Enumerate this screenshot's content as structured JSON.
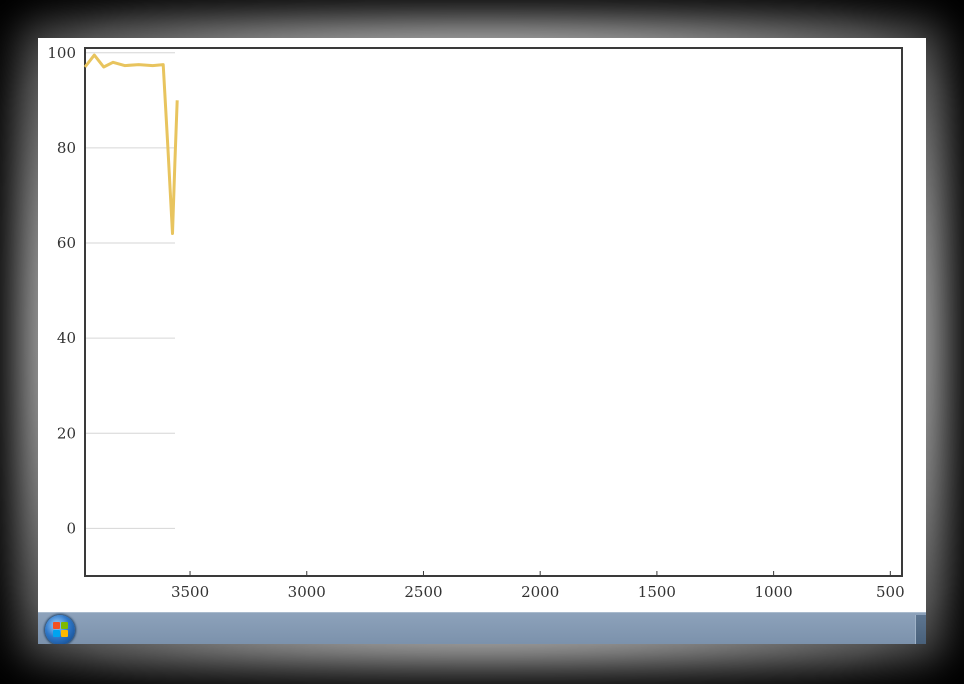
{
  "chart_data": {
    "type": "line",
    "x_axis": {
      "range": [
        3950,
        450
      ],
      "reversed": true,
      "ticks": [
        3500,
        3000,
        2500,
        2000,
        1500,
        1000,
        500
      ],
      "tick_labels": [
        "3500",
        "3000",
        "2500",
        "2000",
        "1500",
        "1000",
        "500"
      ]
    },
    "y_axis": {
      "range": [
        -10,
        101
      ],
      "ticks": [
        0,
        20,
        40,
        60,
        80,
        100
      ],
      "tick_labels": [
        "0",
        "20",
        "40",
        "60",
        "80",
        "100"
      ]
    },
    "grid": "horizontal, partial (only near left edge)",
    "series": [
      {
        "color": "#e8c45e",
        "x": [
          3950,
          3910,
          3870,
          3830,
          3780,
          3720,
          3660,
          3615,
          3595,
          3575,
          3565,
          3555
        ],
        "y": [
          97,
          99.5,
          97,
          98,
          97.3,
          97.5,
          97.3,
          97.5,
          80,
          62,
          77,
          90
        ]
      }
    ]
  },
  "taskbar": {
    "start_button": "windows-start-orb",
    "colors": {
      "bar": "#7f95ae",
      "orb": "#2f78c9"
    }
  }
}
